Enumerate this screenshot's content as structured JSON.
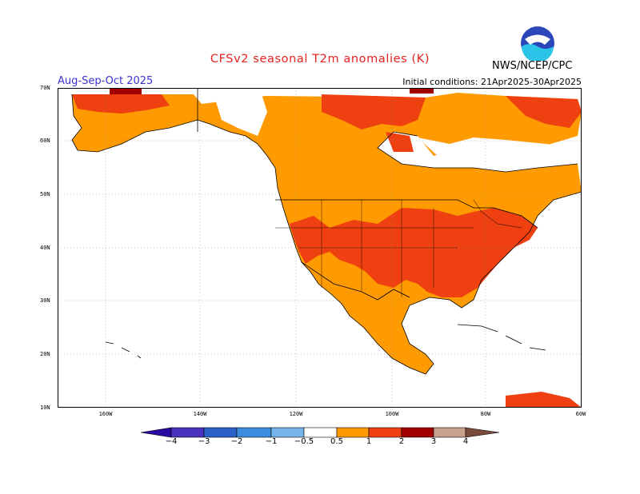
{
  "title": "CFSv2 seasonal T2m anomalies (K)",
  "season": "Aug-Sep-Oct 2025",
  "initial_conditions": "Initial conditions: 21Apr2025-30Apr2025",
  "agency": "NWS/NCEP/CPC",
  "logo_text": "NOAA",
  "map": {
    "lat_labels": [
      "70N",
      "60N",
      "50N",
      "40N",
      "30N",
      "20N",
      "10N"
    ],
    "lon_labels": [
      "160W",
      "140W",
      "120W",
      "100W",
      "80W",
      "60W"
    ],
    "colors": {
      "above_0_5": "#ff9a00",
      "above_1": "#ee4010",
      "above_2": "#a20000",
      "above_3": "#c8a08c",
      "above_4": "#7a4a3c",
      "below_0_5": "#78b4ec",
      "below_1": "#3c8cde",
      "below_2": "#2a60c8",
      "below_3": "#4a32be",
      "below_4": "#2a0aa0",
      "land_outline": "#000000",
      "gridline": "#888888"
    }
  },
  "colorbar": {
    "ticks": [
      "−4",
      "−3",
      "−2",
      "−1",
      "−0.5",
      "0.5",
      "1",
      "2",
      "3",
      "4"
    ],
    "colors": [
      "#2a0aa0",
      "#4a32be",
      "#2a60c8",
      "#3c8cde",
      "#78b4ec",
      "#ffffff",
      "#ff9a00",
      "#ee4010",
      "#a20000",
      "#c8a08c",
      "#7a4a3c"
    ]
  }
}
